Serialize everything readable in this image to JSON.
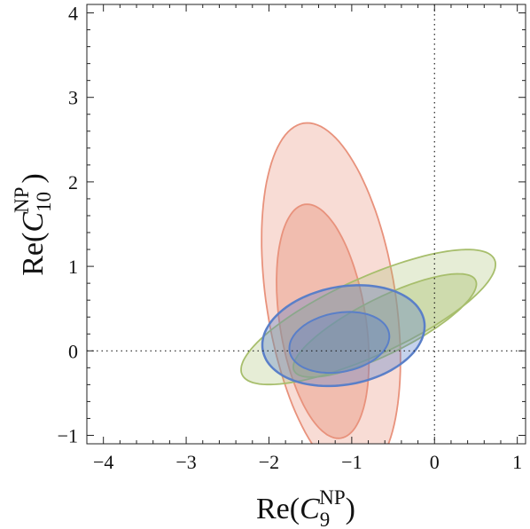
{
  "chart_data": {
    "type": "contour",
    "xlabel": {
      "prefix": "Re(",
      "symbol": "C",
      "sub": "9",
      "sup": "NP",
      "suffix": ")"
    },
    "ylabel": {
      "prefix": "Re(",
      "symbol": "C",
      "sub": "10",
      "sup": "NP",
      "suffix": ")"
    },
    "xlim": [
      -4.2,
      1.1
    ],
    "ylim": [
      -1.1,
      4.1
    ],
    "xticks": [
      -4,
      -3,
      -2,
      -1,
      0,
      1
    ],
    "yticks": [
      -1,
      0,
      1,
      2,
      3,
      4
    ],
    "xtick_labels": [
      "−4",
      "−3",
      "−2",
      "−1",
      "0",
      "1"
    ],
    "ytick_labels": [
      "−1",
      "0",
      "1",
      "2",
      "3",
      "4"
    ],
    "grid": false,
    "reference_lines": {
      "x": 0,
      "y": 0,
      "style": "dotted"
    },
    "regions": [
      {
        "color": "#e8927c",
        "fill_opacity": 0.32,
        "cx": -1.25,
        "cy": 0.6,
        "rx": 0.78,
        "ry": 2.12,
        "angle_deg": 9
      },
      {
        "color": "#e8927c",
        "fill_opacity": 0.42,
        "cx": -1.35,
        "cy": 0.35,
        "rx": 0.52,
        "ry": 1.4,
        "angle_deg": 9
      },
      {
        "color": "#a7be6c",
        "fill_opacity": 0.28,
        "cx": -0.8,
        "cy": 0.4,
        "rx": 1.67,
        "ry": 0.46,
        "angle_deg": 24
      },
      {
        "color": "#a7be6c",
        "fill_opacity": 0.38,
        "cx": -0.6,
        "cy": 0.3,
        "rx": 1.22,
        "ry": 0.33,
        "angle_deg": 26
      },
      {
        "color": "#5a7fc8",
        "fill_opacity": 0.35,
        "cx": -1.1,
        "cy": 0.18,
        "rx": 0.99,
        "ry": 0.58,
        "angle_deg": 10,
        "stroke_width": 2.5
      },
      {
        "color": "#5a7fc8",
        "fill_opacity": 0.35,
        "cx": -1.15,
        "cy": 0.1,
        "rx": 0.61,
        "ry": 0.35,
        "angle_deg": 10,
        "stroke_width": 2
      }
    ]
  }
}
